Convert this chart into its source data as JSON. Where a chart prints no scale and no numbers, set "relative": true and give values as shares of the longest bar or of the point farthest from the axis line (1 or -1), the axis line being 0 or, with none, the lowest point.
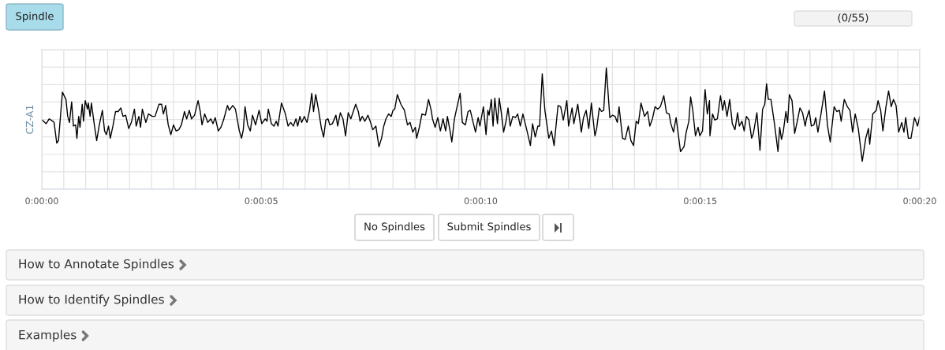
{
  "chart_data": {
    "type": "line",
    "ylabel": "CZ-A1",
    "relative": true,
    "grid": true,
    "marker": "none",
    "line_style": "solid",
    "legend": false,
    "tick_labels": "x",
    "xlim": [
      0,
      20
    ],
    "xticks": [
      {
        "value": 0,
        "label": "0:00:00"
      },
      {
        "value": 0.5,
        "label": null
      },
      {
        "value": 1,
        "label": null
      },
      {
        "value": 1.5,
        "label": null
      },
      {
        "value": 2,
        "label": null
      },
      {
        "value": 2.5,
        "label": null
      },
      {
        "value": 3,
        "label": null
      },
      {
        "value": 3.5,
        "label": null
      },
      {
        "value": 4,
        "label": null
      },
      {
        "value": 4.5,
        "label": null
      },
      {
        "value": 5,
        "label": "0:00:05"
      },
      {
        "value": 5.5,
        "label": null
      },
      {
        "value": 6,
        "label": null
      },
      {
        "value": 6.5,
        "label": null
      },
      {
        "value": 7,
        "label": null
      },
      {
        "value": 7.5,
        "label": null
      },
      {
        "value": 8,
        "label": null
      },
      {
        "value": 8.5,
        "label": null
      },
      {
        "value": 9,
        "label": null
      },
      {
        "value": 9.5,
        "label": null
      },
      {
        "value": 10,
        "label": "0:00:10"
      },
      {
        "value": 10.5,
        "label": null
      },
      {
        "value": 11,
        "label": null
      },
      {
        "value": 11.5,
        "label": null
      },
      {
        "value": 12,
        "label": null
      },
      {
        "value": 12.5,
        "label": null
      },
      {
        "value": 13,
        "label": null
      },
      {
        "value": 13.5,
        "label": null
      },
      {
        "value": 14,
        "label": null
      },
      {
        "value": 14.5,
        "label": null
      },
      {
        "value": 15,
        "label": "0:00:15"
      },
      {
        "value": 15.5,
        "label": null
      },
      {
        "value": 16,
        "label": null
      },
      {
        "value": 16.5,
        "label": null
      },
      {
        "value": 17,
        "label": null
      },
      {
        "value": 17.5,
        "label": null
      },
      {
        "value": 18,
        "label": null
      },
      {
        "value": 18.5,
        "label": null
      },
      {
        "value": 19,
        "label": null
      },
      {
        "value": 19.5,
        "label": null
      },
      {
        "value": 20,
        "label": "0:00:20"
      }
    ],
    "annotations": [
      "Spindle",
      "(0/55)",
      "No Spindles",
      "Submit Spindles",
      "How to Annotate Spindles",
      "How to Identify Spindles",
      "Examples"
    ],
    "series": [
      {
        "color": "#000000",
        "x": [
          0.01,
          0.1,
          0.17,
          0.25,
          0.28,
          0.34,
          0.38,
          0.47,
          0.55,
          0.59,
          0.63,
          0.68,
          0.72,
          0.77,
          0.8,
          0.84,
          0.87,
          0.92,
          0.95,
          0.99,
          1.04,
          1.06,
          1.1,
          1.13,
          1.2,
          1.25,
          1.31,
          1.38,
          1.43,
          1.47,
          1.52,
          1.56,
          1.62,
          1.68,
          1.74,
          1.8,
          1.85,
          1.91,
          1.98,
          2.04,
          2.11,
          2.15,
          2.21,
          2.25,
          2.29,
          2.37,
          2.43,
          2.52,
          2.58,
          2.67,
          2.73,
          2.77,
          2.82,
          2.88,
          2.94,
          3.0,
          3.06,
          3.12,
          3.18,
          3.25,
          3.3,
          3.36,
          3.41,
          3.48,
          3.56,
          3.61,
          3.65,
          3.71,
          3.78,
          3.85,
          3.9,
          3.95,
          4.02,
          4.08,
          4.14,
          4.23,
          4.27,
          4.35,
          4.41,
          4.5,
          4.55,
          4.59,
          4.63,
          4.69,
          4.75,
          4.8,
          4.87,
          4.95,
          5.01,
          5.09,
          5.13,
          5.16,
          5.23,
          5.29,
          5.34,
          5.38,
          5.46,
          5.55,
          5.61,
          5.67,
          5.73,
          5.79,
          5.83,
          5.88,
          5.92,
          5.98,
          6.04,
          6.1,
          6.15,
          6.19,
          6.24,
          6.31,
          6.37,
          6.42,
          6.47,
          6.52,
          6.56,
          6.62,
          6.7,
          6.74,
          6.8,
          6.86,
          6.92,
          6.98,
          7.04,
          7.15,
          7.21,
          7.25,
          7.3,
          7.36,
          7.43,
          7.48,
          7.54,
          7.61,
          7.68,
          7.74,
          7.79,
          7.84,
          7.9,
          7.96,
          8.0,
          8.04,
          8.1,
          8.18,
          8.26,
          8.33,
          8.39,
          8.45,
          8.51,
          8.54,
          8.6,
          8.66,
          8.74,
          8.81,
          8.87,
          8.9,
          8.96,
          9.02,
          9.08,
          9.14,
          9.2,
          9.24,
          9.3,
          9.34,
          9.4,
          9.46,
          9.53,
          9.58,
          9.65,
          9.71,
          9.76,
          9.82,
          9.88,
          9.94,
          9.98,
          10.06,
          10.12,
          10.16,
          10.19,
          10.24,
          10.28,
          10.32,
          10.38,
          10.42,
          10.46,
          10.52,
          10.58,
          10.62,
          10.67,
          10.73,
          10.79,
          10.84,
          10.9,
          10.96,
          11.0,
          11.06,
          11.13,
          11.18,
          11.24,
          11.3,
          11.34,
          11.4,
          11.46,
          11.55,
          11.61,
          11.67,
          11.76,
          11.82,
          11.88,
          11.96,
          12.0,
          12.08,
          12.12,
          12.21,
          12.29,
          12.34,
          12.4,
          12.46,
          12.52,
          12.6,
          12.64,
          12.7,
          12.75,
          12.8,
          12.86,
          12.94,
          13.0,
          13.06,
          13.11,
          13.15,
          13.23,
          13.29,
          13.36,
          13.42,
          13.48,
          13.54,
          13.59,
          13.65,
          13.73,
          13.8,
          13.85,
          13.91,
          13.97,
          14.03,
          14.09,
          14.17,
          14.23,
          14.29,
          14.33,
          14.39,
          14.45,
          14.55,
          14.63,
          14.68,
          14.74,
          14.78,
          14.83,
          14.89,
          14.95,
          14.99,
          15.05,
          15.11,
          15.16,
          15.21,
          15.22,
          15.28,
          15.33,
          15.39,
          15.46,
          15.51,
          15.55,
          15.61,
          15.67,
          15.73,
          15.79,
          15.85,
          15.89,
          15.95,
          16.0,
          16.05,
          16.11,
          16.17,
          16.21,
          16.29,
          16.36,
          16.42,
          16.47,
          16.51,
          16.55,
          16.61,
          16.69,
          16.77,
          16.81,
          16.85,
          16.89,
          16.95,
          16.99,
          17.03,
          17.09,
          17.15,
          17.21,
          17.27,
          17.33,
          17.39,
          17.42,
          17.48,
          17.53,
          17.59,
          17.63,
          17.68,
          17.75,
          17.83,
          17.9,
          17.96,
          18.05,
          18.11,
          18.17,
          18.21,
          18.28,
          18.35,
          18.41,
          18.47,
          18.53,
          18.6,
          18.69,
          18.77,
          18.83,
          18.86,
          18.93,
          19.01,
          19.05,
          19.11,
          19.16,
          19.23,
          19.29,
          19.35,
          19.4,
          19.46,
          19.52,
          19.59,
          19.64,
          19.68,
          19.74,
          19.8,
          19.88,
          19.95,
          20.0
        ],
        "values": [
          0.57,
          0.54,
          0.58,
          0.56,
          0.55,
          0.38,
          0.4,
          0.8,
          0.74,
          0.6,
          0.55,
          0.72,
          0.52,
          0.53,
          0.42,
          0.6,
          0.51,
          0.7,
          0.56,
          0.73,
          0.66,
          0.71,
          0.6,
          0.71,
          0.52,
          0.4,
          0.53,
          0.65,
          0.48,
          0.45,
          0.52,
          0.42,
          0.52,
          0.64,
          0.64,
          0.67,
          0.6,
          0.61,
          0.5,
          0.55,
          0.66,
          0.52,
          0.6,
          0.51,
          0.66,
          0.55,
          0.62,
          0.6,
          0.6,
          0.7,
          0.7,
          0.62,
          0.69,
          0.53,
          0.45,
          0.53,
          0.48,
          0.49,
          0.53,
          0.64,
          0.58,
          0.65,
          0.58,
          0.61,
          0.73,
          0.64,
          0.53,
          0.62,
          0.55,
          0.58,
          0.54,
          0.59,
          0.48,
          0.51,
          0.57,
          0.69,
          0.65,
          0.69,
          0.66,
          0.48,
          0.42,
          0.49,
          0.68,
          0.53,
          0.48,
          0.61,
          0.53,
          0.65,
          0.54,
          0.58,
          0.56,
          0.66,
          0.54,
          0.52,
          0.56,
          0.52,
          0.71,
          0.62,
          0.52,
          0.55,
          0.52,
          0.58,
          0.52,
          0.6,
          0.55,
          0.6,
          0.55,
          0.65,
          0.79,
          0.64,
          0.78,
          0.64,
          0.5,
          0.43,
          0.57,
          0.58,
          0.53,
          0.54,
          0.61,
          0.52,
          0.63,
          0.58,
          0.44,
          0.63,
          0.58,
          0.7,
          0.64,
          0.56,
          0.6,
          0.56,
          0.61,
          0.56,
          0.49,
          0.52,
          0.35,
          0.42,
          0.52,
          0.58,
          0.62,
          0.6,
          0.65,
          0.66,
          0.78,
          0.7,
          0.65,
          0.53,
          0.55,
          0.47,
          0.51,
          0.42,
          0.51,
          0.62,
          0.61,
          0.74,
          0.65,
          0.58,
          0.51,
          0.59,
          0.48,
          0.58,
          0.48,
          0.6,
          0.48,
          0.39,
          0.58,
          0.68,
          0.79,
          0.55,
          0.53,
          0.64,
          0.65,
          0.56,
          0.47,
          0.59,
          0.52,
          0.68,
          0.45,
          0.65,
          0.61,
          0.74,
          0.52,
          0.75,
          0.54,
          0.75,
          0.65,
          0.47,
          0.57,
          0.67,
          0.52,
          0.6,
          0.59,
          0.62,
          0.52,
          0.62,
          0.56,
          0.47,
          0.36,
          0.54,
          0.43,
          0.52,
          0.52,
          0.95,
          0.65,
          0.42,
          0.48,
          0.36,
          0.69,
          0.68,
          0.57,
          0.73,
          0.52,
          0.67,
          0.54,
          0.7,
          0.47,
          0.59,
          0.65,
          0.5,
          0.71,
          0.44,
          0.5,
          0.67,
          0.64,
          0.65,
          1.0,
          0.59,
          0.61,
          0.6,
          0.55,
          0.68,
          0.42,
          0.41,
          0.52,
          0.4,
          0.36,
          0.56,
          0.54,
          0.71,
          0.6,
          0.64,
          0.52,
          0.58,
          0.68,
          0.66,
          0.68,
          0.77,
          0.63,
          0.62,
          0.54,
          0.47,
          0.59,
          0.31,
          0.35,
          0.47,
          0.56,
          0.76,
          0.65,
          0.44,
          0.51,
          0.44,
          0.48,
          0.82,
          0.62,
          0.73,
          0.44,
          0.62,
          0.57,
          0.58,
          0.77,
          0.65,
          0.73,
          0.6,
          0.74,
          0.54,
          0.49,
          0.63,
          0.52,
          0.56,
          0.48,
          0.6,
          0.57,
          0.42,
          0.46,
          0.63,
          0.32,
          0.66,
          0.7,
          0.87,
          0.74,
          0.74,
          0.54,
          0.31,
          0.51,
          0.41,
          0.47,
          0.64,
          0.55,
          0.78,
          0.73,
          0.46,
          0.56,
          0.67,
          0.63,
          0.52,
          0.58,
          0.65,
          0.52,
          0.53,
          0.59,
          0.47,
          0.62,
          0.81,
          0.52,
          0.39,
          0.68,
          0.64,
          0.65,
          0.56,
          0.74,
          0.68,
          0.65,
          0.47,
          0.62,
          0.5,
          0.23,
          0.42,
          0.5,
          0.37,
          0.62,
          0.65,
          0.73,
          0.65,
          0.48,
          0.68,
          0.81,
          0.68,
          0.74,
          0.69,
          0.47,
          0.55,
          0.47,
          0.59,
          0.42,
          0.42,
          0.59,
          0.52,
          0.6
        ]
      }
    ]
  }
}
